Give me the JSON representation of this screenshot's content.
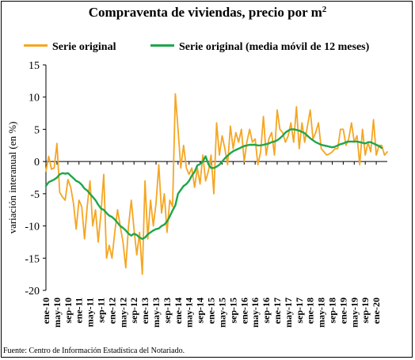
{
  "title": "Compraventa de viviendas, precio por m",
  "title_sup": "2",
  "source": "Fuente: Centro de Información Estadística del Notariado.",
  "colors": {
    "orange": "#F5A623",
    "green": "#1FA64A",
    "grid": "#000000"
  },
  "chart_data": {
    "type": "line",
    "title": "Compraventa de viviendas, precio por m2",
    "ylabel": "variación interanual (en %)",
    "xlabel": "",
    "ylim": [
      -20,
      15
    ],
    "yticks": [
      -20,
      -15,
      -10,
      -5,
      0,
      5,
      10,
      15
    ],
    "legend_position": "top",
    "x_ticks": [
      "ene-10",
      "may-10",
      "sep-10",
      "ene-11",
      "may-11",
      "sep-11",
      "ene-12",
      "may-12",
      "sep-12",
      "ene-13",
      "may-13",
      "sep-13",
      "ene-14",
      "may-14",
      "sep-14",
      "ene-15",
      "may-15",
      "sep-15",
      "ene-16",
      "may-16",
      "sep-16",
      "ene-17",
      "may-17",
      "sep-17",
      "ene-18",
      "may-18",
      "sep-18",
      "ene-19",
      "may-19",
      "sep-19",
      "ene-20"
    ],
    "series": [
      {
        "name": "Serie original",
        "color": "#F5A623",
        "values": [
          -1.5,
          0.8,
          -1.2,
          -1.0,
          2.8,
          -4.8,
          -5.5,
          -6.0,
          -2.8,
          -4.0,
          -6.5,
          -10.5,
          -6.0,
          -7.0,
          -12.0,
          -7.0,
          -3.0,
          -10.0,
          -7.5,
          -12.5,
          -8.0,
          -2.0,
          -15.0,
          -13.0,
          -15.0,
          -11.0,
          -7.5,
          -10.0,
          -12.5,
          -16.5,
          -10.0,
          -6.0,
          -10.5,
          -14.5,
          -11.0,
          -17.5,
          -3.0,
          -12.0,
          -6.0,
          -10.0,
          -6.5,
          -0.5,
          -8.0,
          -5.0,
          -11.0,
          -6.0,
          -7.0,
          10.5,
          5.0,
          -1.0,
          2.5,
          -1.0,
          -2.0,
          -1.0,
          -4.0,
          -1.0,
          -3.5,
          1.0,
          -3.0,
          -1.5,
          1.0,
          -5.0,
          6.0,
          1.0,
          4.0,
          2.0,
          -0.5,
          5.5,
          2.0,
          4.5,
          3.0,
          5.0,
          0.0,
          3.0,
          5.0,
          3.0,
          3.5,
          -0.5,
          1.5,
          7.0,
          1.0,
          3.5,
          4.5,
          1.0,
          8.0,
          5.0,
          4.5,
          3.0,
          4.0,
          6.0,
          3.0,
          8.5,
          2.0,
          6.0,
          3.0,
          5.5,
          8.0,
          3.5,
          4.5,
          6.0,
          2.0,
          1.5,
          1.0,
          1.2,
          1.5,
          2.0,
          2.0,
          5.0,
          5.0,
          2.5,
          3.5,
          6.0,
          3.0,
          4.0,
          -0.5,
          5.0,
          1.0,
          3.0,
          1.5,
          6.5,
          1.0,
          2.5,
          2.5,
          1.0,
          1.5
        ]
      },
      {
        "name": "Serie original (media móvil de 12 meses)",
        "color": "#1FA64A",
        "values": [
          -3.8,
          -3.2,
          -3.0,
          -2.8,
          -2.5,
          -2.0,
          -1.8,
          -1.9,
          -1.8,
          -2.2,
          -2.6,
          -3.0,
          -3.2,
          -3.6,
          -4.2,
          -4.5,
          -5.0,
          -5.5,
          -6.0,
          -6.7,
          -7.3,
          -7.5,
          -8.0,
          -8.4,
          -8.6,
          -9.0,
          -9.5,
          -10.0,
          -10.3,
          -10.7,
          -11.2,
          -11.5,
          -11.2,
          -11.4,
          -11.8,
          -12.0,
          -11.8,
          -11.3,
          -11.0,
          -10.7,
          -10.5,
          -10.4,
          -10.0,
          -9.8,
          -9.3,
          -8.5,
          -7.6,
          -6.8,
          -5.0,
          -4.4,
          -3.8,
          -3.5,
          -3.0,
          -2.2,
          -1.6,
          -0.6,
          -0.4,
          0.0,
          0.8,
          -0.4,
          -1.0,
          -1.0,
          -0.8,
          -0.5,
          0.0,
          0.5,
          0.9,
          1.3,
          1.6,
          1.8,
          2.0,
          2.2,
          2.4,
          2.5,
          2.6,
          2.6,
          2.6,
          2.5,
          2.5,
          2.6,
          2.7,
          2.8,
          3.0,
          3.1,
          3.3,
          3.6,
          4.0,
          4.5,
          4.8,
          5.0,
          5.0,
          4.9,
          4.8,
          4.6,
          4.4,
          4.0,
          3.6,
          3.3,
          3.0,
          2.8,
          2.6,
          2.5,
          2.4,
          2.3,
          2.2,
          2.3,
          2.5,
          2.7,
          2.8,
          3.0,
          3.1,
          3.1,
          3.1,
          3.1,
          3.0,
          2.9,
          2.8,
          3.0,
          3.0,
          2.8,
          2.6,
          2.4,
          2.1
        ]
      }
    ]
  }
}
